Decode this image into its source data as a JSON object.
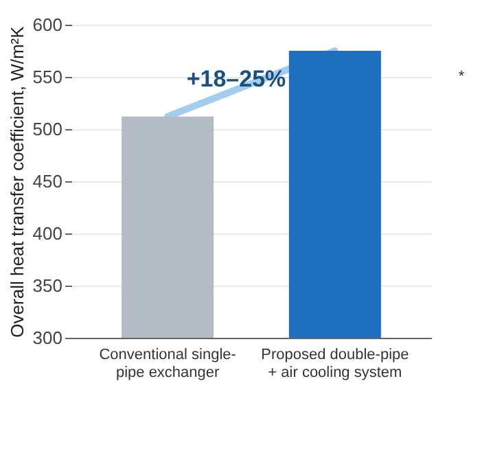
{
  "chart_data": {
    "type": "bar",
    "ylabel": "Overall heat transfer coefficient, W/m²K",
    "categories": [
      "Conventional single-pipe exchanger",
      "Proposed double-pipe + air cooling system"
    ],
    "values": [
      512,
      575
    ],
    "colors": [
      "#b3bbc5",
      "#1f6fc0"
    ],
    "ylim": [
      300,
      600
    ],
    "yticks": [
      300,
      350,
      400,
      450,
      500,
      550,
      600
    ],
    "grid": "y",
    "annotations": [
      "+18–25%",
      "*"
    ]
  }
}
